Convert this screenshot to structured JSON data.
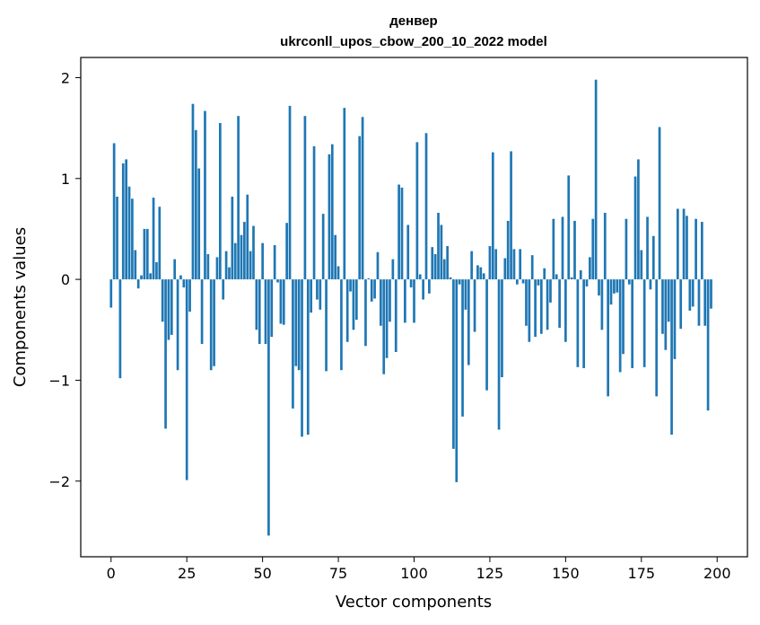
{
  "chart_data": {
    "type": "bar",
    "title": "денвер",
    "subtitle": "ukrconll_upos_cbow_200_10_2022 model",
    "xlabel": "Vector components",
    "ylabel": "Components values",
    "xlim": [
      -10,
      210
    ],
    "ylim": [
      -2.75,
      2.2
    ],
    "xticks": [
      0,
      25,
      50,
      75,
      100,
      125,
      150,
      175,
      200
    ],
    "yticks": [
      -2,
      -1,
      0,
      1,
      2
    ],
    "xtick_labels": [
      "0",
      "25",
      "50",
      "75",
      "100",
      "125",
      "150",
      "175",
      "200"
    ],
    "ytick_labels": [
      "−2",
      "−1",
      "0",
      "1",
      "2"
    ],
    "grid": false,
    "bar_color": "#1f77b4",
    "series": [
      {
        "values": [
          -0.28,
          1.35,
          0.82,
          -0.98,
          1.15,
          1.19,
          0.92,
          0.8,
          0.29,
          -0.09,
          0.04,
          0.5,
          0.5,
          0.06,
          0.81,
          0.17,
          0.72,
          -0.42,
          -1.48,
          -0.6,
          -0.55,
          0.2,
          -0.9,
          0.04,
          -0.08,
          -1.99,
          -0.32,
          1.74,
          1.48,
          1.1,
          -0.64,
          1.67,
          0.25,
          -0.9,
          -0.86,
          0.22,
          1.55,
          -0.2,
          0.28,
          0.12,
          0.82,
          0.36,
          1.62,
          0.44,
          0.57,
          0.84,
          0.28,
          0.53,
          -0.5,
          -0.64,
          0.36,
          -0.64,
          -2.54,
          -0.57,
          0.34,
          -0.03,
          -0.44,
          -0.45,
          0.56,
          1.72,
          -1.28,
          -0.86,
          -0.9,
          -1.56,
          1.62,
          -1.54,
          -0.33,
          1.32,
          -0.2,
          -0.3,
          0.65,
          -0.91,
          1.24,
          1.34,
          0.44,
          0.13,
          -0.9,
          1.7,
          -0.62,
          -0.12,
          -0.5,
          -0.4,
          1.42,
          1.61,
          -0.66,
          0.01,
          -0.22,
          -0.19,
          0.27,
          -0.46,
          -0.94,
          -0.78,
          -0.42,
          0.2,
          -0.72,
          0.94,
          0.91,
          -0.43,
          0.54,
          -0.08,
          -0.43,
          1.36,
          0.05,
          -0.2,
          1.45,
          -0.14,
          0.32,
          0.25,
          0.66,
          0.54,
          0.2,
          0.33,
          0.02,
          -1.68,
          -2.01,
          -0.05,
          -1.36,
          -0.3,
          -0.85,
          0.28,
          -0.52,
          0.14,
          0.12,
          0.06,
          -1.1,
          0.33,
          1.26,
          0.3,
          -1.49,
          -0.97,
          0.21,
          0.58,
          1.27,
          0.3,
          -0.05,
          0.3,
          -0.04,
          -0.46,
          -0.62,
          0.24,
          -0.57,
          -0.06,
          -0.54,
          0.11,
          -0.5,
          -0.23,
          0.6,
          0.05,
          -0.48,
          0.62,
          -0.62,
          1.03,
          0.02,
          0.58,
          -0.87,
          0.09,
          -0.88,
          -0.07,
          0.22,
          0.6,
          1.98,
          -0.16,
          -0.5,
          0.66,
          -1.16,
          -0.25,
          -0.14,
          -0.13,
          -0.92,
          -0.74,
          0.6,
          -0.05,
          -0.88,
          1.02,
          1.19,
          0.29,
          -0.87,
          0.62,
          -0.1,
          0.43,
          -1.16,
          1.51,
          -0.54,
          -0.7,
          -0.42,
          -1.54,
          -0.79,
          0.7,
          -0.49,
          0.7,
          0.63,
          -0.31,
          -0.27,
          0.6,
          -0.46,
          0.57,
          -0.46,
          -1.3,
          -0.29,
          0.0
        ]
      }
    ]
  }
}
